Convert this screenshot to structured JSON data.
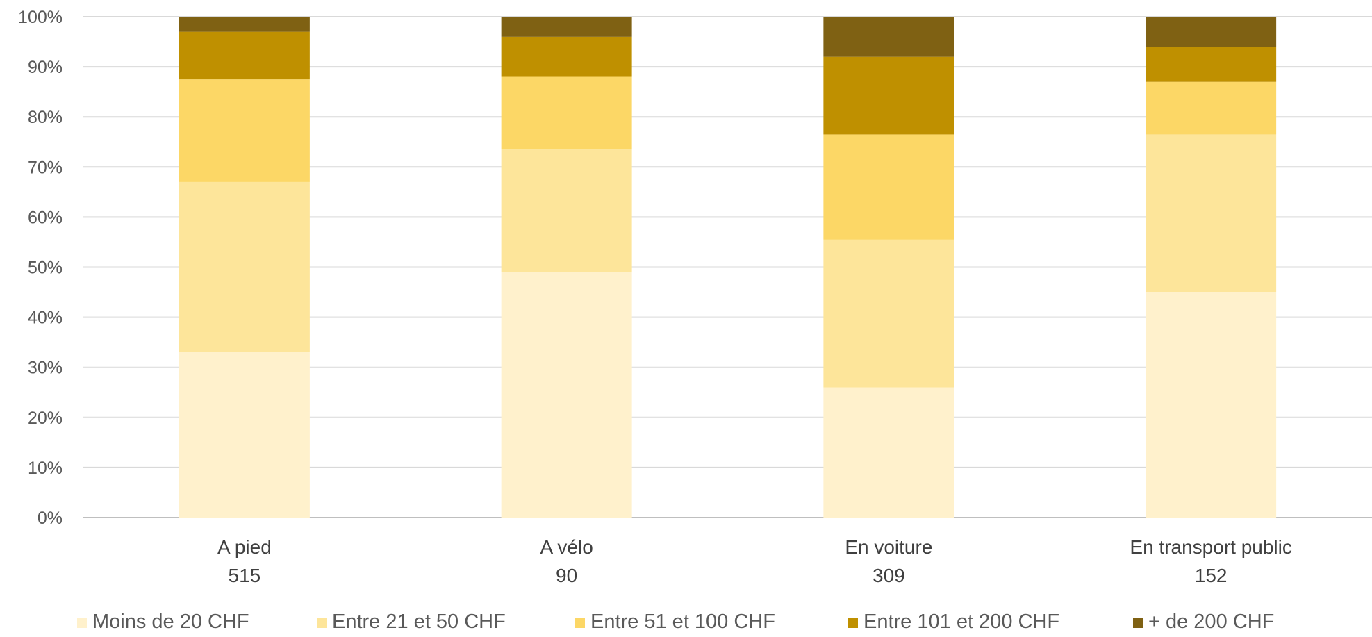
{
  "chart_data": {
    "type": "bar",
    "stacked": true,
    "percent": true,
    "categories": [
      "A pied",
      "A vélo",
      "En voiture",
      "En transport public"
    ],
    "category_counts": [
      "515",
      "90",
      "309",
      "152"
    ],
    "series": [
      {
        "name": "Moins de 20 CHF",
        "color": "#FFF1CC",
        "values": [
          33,
          49,
          26,
          45
        ]
      },
      {
        "name": "Entre 21 et 50 CHF",
        "color": "#FDE59A",
        "values": [
          34,
          24.5,
          29.5,
          31.5
        ]
      },
      {
        "name": "Entre 51 et 100 CHF",
        "color": "#FCD766",
        "values": [
          20.5,
          14.5,
          21,
          10.5
        ]
      },
      {
        "name": "Entre 101 et 200 CHF",
        "color": "#BF9000",
        "values": [
          9.5,
          8,
          15.5,
          7
        ]
      },
      {
        "name": "+ de 200 CHF",
        "color": "#7F6113",
        "values": [
          3,
          4,
          8,
          6
        ]
      }
    ],
    "ylim": [
      0,
      100
    ],
    "yticks": [
      "0%",
      "10%",
      "20%",
      "30%",
      "40%",
      "50%",
      "60%",
      "70%",
      "80%",
      "90%",
      "100%"
    ],
    "grid": true,
    "legend_position": "bottom"
  }
}
